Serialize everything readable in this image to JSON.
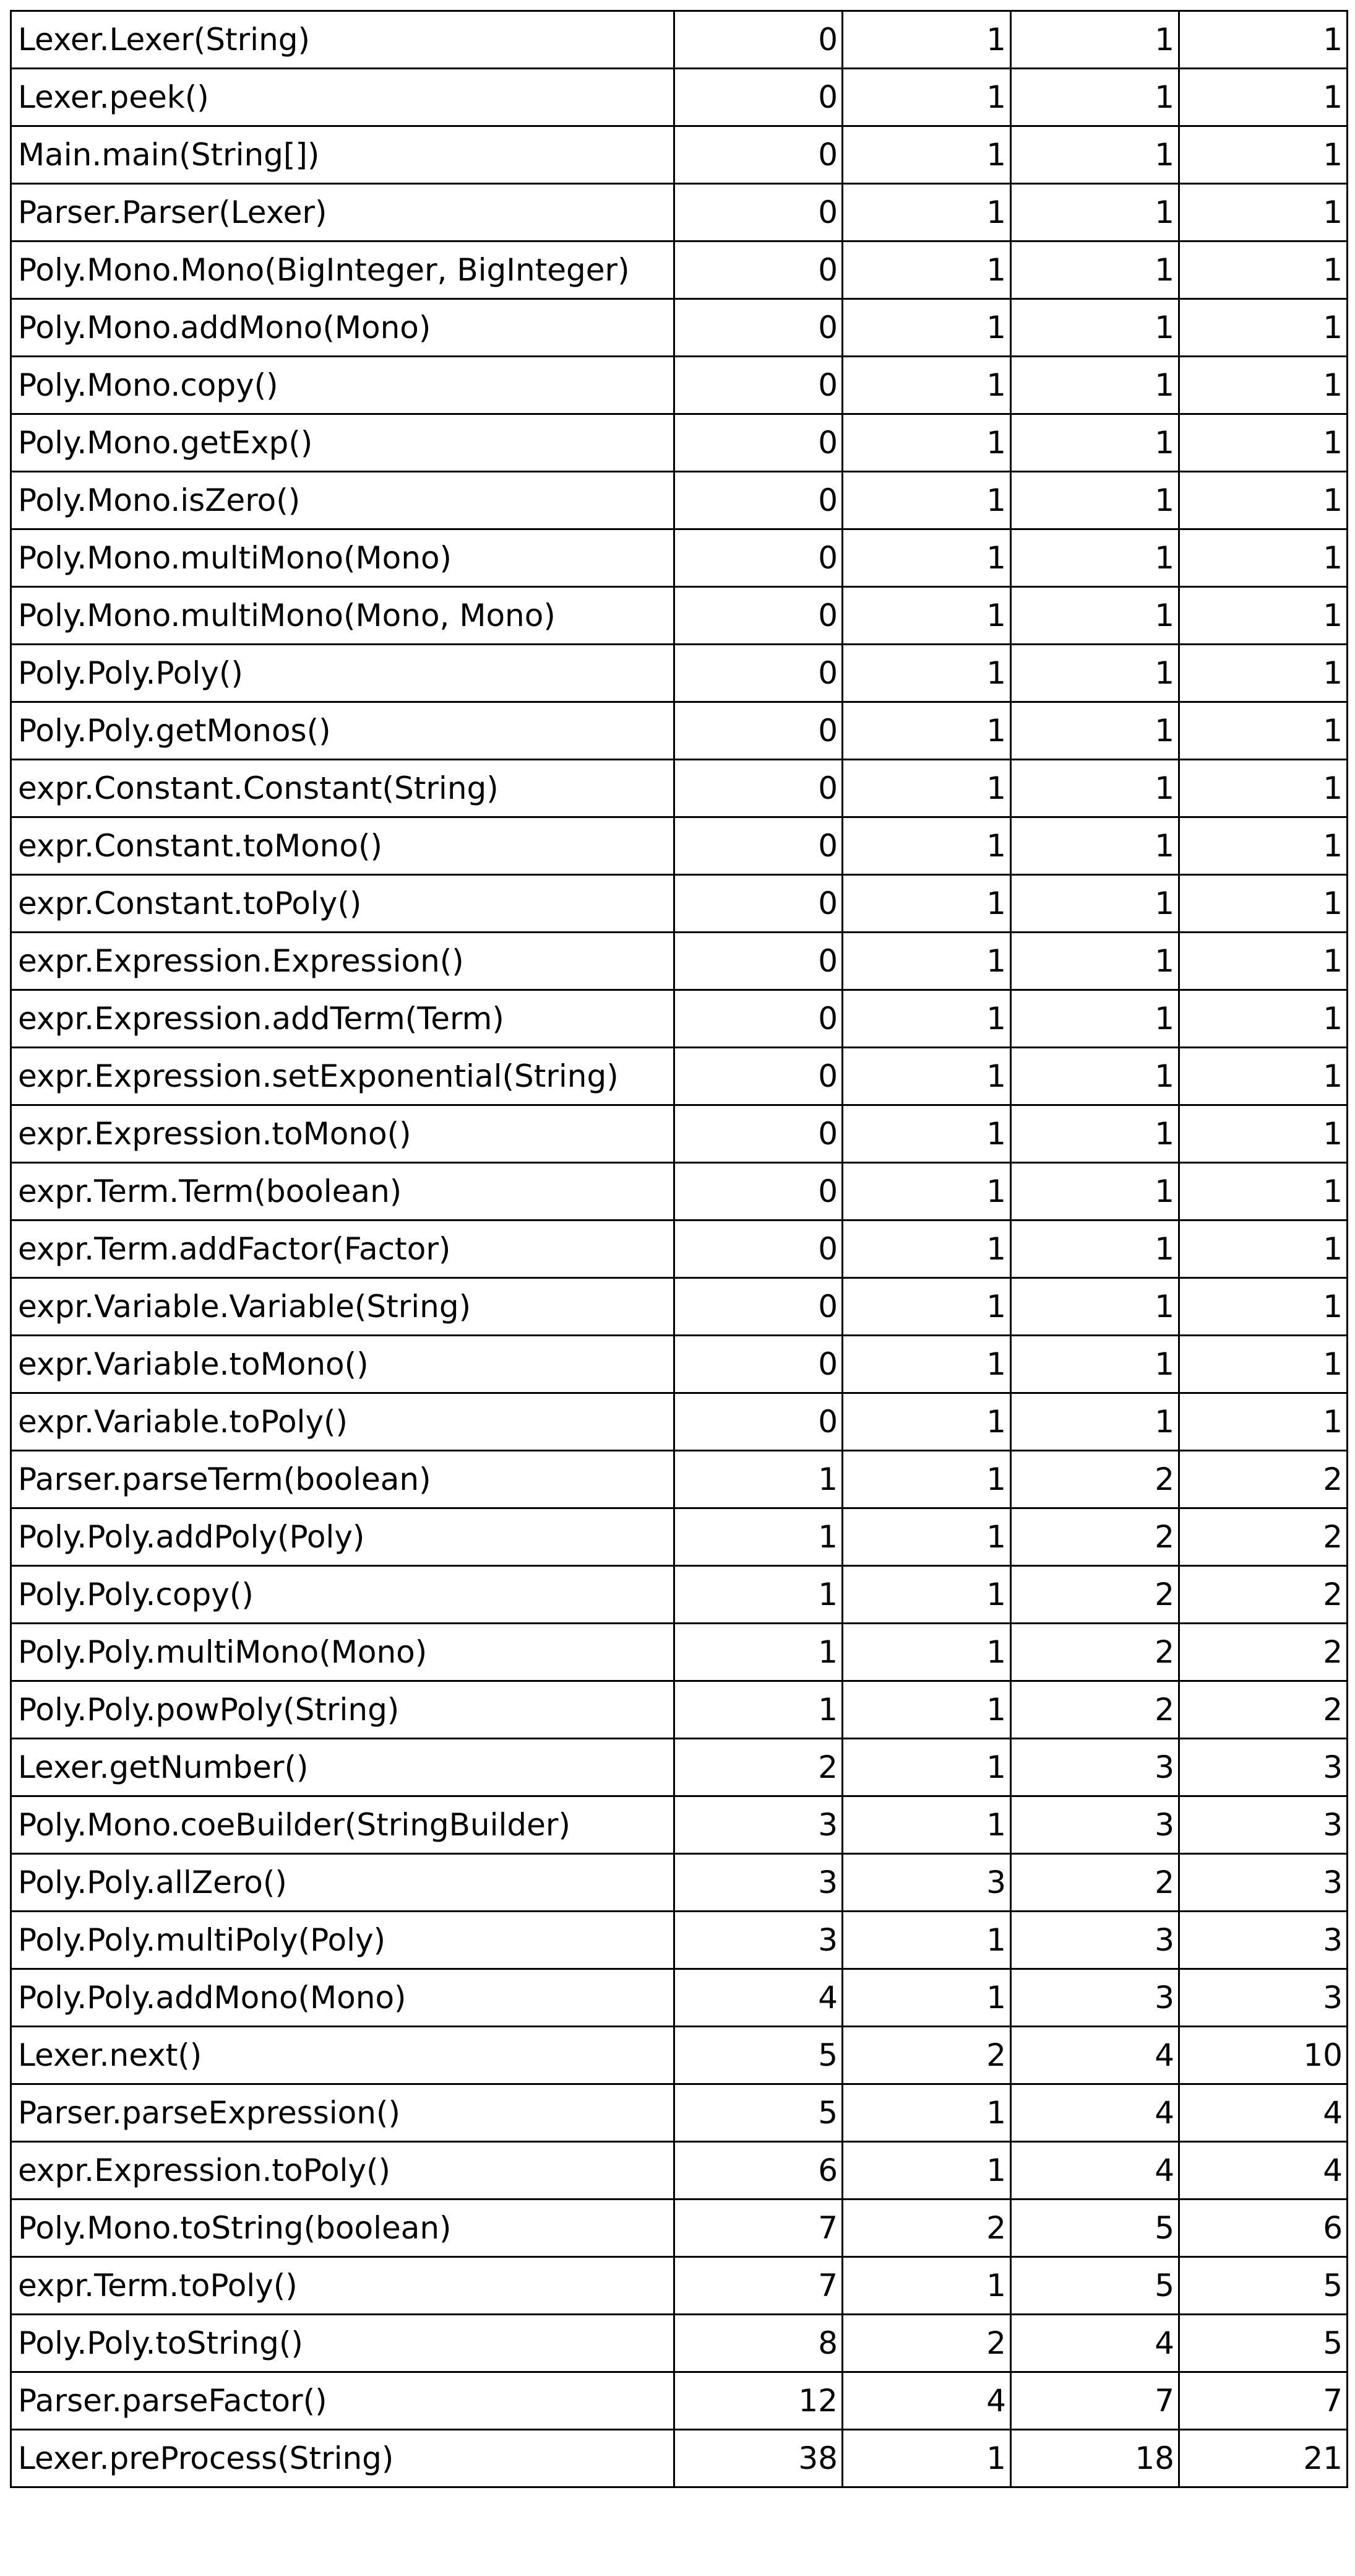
{
  "table": {
    "rows": [
      {
        "method": "Lexer.Lexer(String)",
        "v1": "0",
        "v2": "1",
        "v3": "1",
        "v4": "1"
      },
      {
        "method": "Lexer.peek()",
        "v1": "0",
        "v2": "1",
        "v3": "1",
        "v4": "1"
      },
      {
        "method": "Main.main(String[])",
        "v1": "0",
        "v2": "1",
        "v3": "1",
        "v4": "1"
      },
      {
        "method": "Parser.Parser(Lexer)",
        "v1": "0",
        "v2": "1",
        "v3": "1",
        "v4": "1"
      },
      {
        "method": "Poly.Mono.Mono(BigInteger, BigInteger)",
        "v1": "0",
        "v2": "1",
        "v3": "1",
        "v4": "1"
      },
      {
        "method": "Poly.Mono.addMono(Mono)",
        "v1": "0",
        "v2": "1",
        "v3": "1",
        "v4": "1"
      },
      {
        "method": "Poly.Mono.copy()",
        "v1": "0",
        "v2": "1",
        "v3": "1",
        "v4": "1"
      },
      {
        "method": "Poly.Mono.getExp()",
        "v1": "0",
        "v2": "1",
        "v3": "1",
        "v4": "1"
      },
      {
        "method": "Poly.Mono.isZero()",
        "v1": "0",
        "v2": "1",
        "v3": "1",
        "v4": "1"
      },
      {
        "method": "Poly.Mono.multiMono(Mono)",
        "v1": "0",
        "v2": "1",
        "v3": "1",
        "v4": "1"
      },
      {
        "method": "Poly.Mono.multiMono(Mono, Mono)",
        "v1": "0",
        "v2": "1",
        "v3": "1",
        "v4": "1"
      },
      {
        "method": "Poly.Poly.Poly()",
        "v1": "0",
        "v2": "1",
        "v3": "1",
        "v4": "1"
      },
      {
        "method": "Poly.Poly.getMonos()",
        "v1": "0",
        "v2": "1",
        "v3": "1",
        "v4": "1"
      },
      {
        "method": "expr.Constant.Constant(String)",
        "v1": "0",
        "v2": "1",
        "v3": "1",
        "v4": "1"
      },
      {
        "method": "expr.Constant.toMono()",
        "v1": "0",
        "v2": "1",
        "v3": "1",
        "v4": "1"
      },
      {
        "method": "expr.Constant.toPoly()",
        "v1": "0",
        "v2": "1",
        "v3": "1",
        "v4": "1"
      },
      {
        "method": "expr.Expression.Expression()",
        "v1": "0",
        "v2": "1",
        "v3": "1",
        "v4": "1"
      },
      {
        "method": "expr.Expression.addTerm(Term)",
        "v1": "0",
        "v2": "1",
        "v3": "1",
        "v4": "1"
      },
      {
        "method": "expr.Expression.setExponential(String)",
        "v1": "0",
        "v2": "1",
        "v3": "1",
        "v4": "1"
      },
      {
        "method": "expr.Expression.toMono()",
        "v1": "0",
        "v2": "1",
        "v3": "1",
        "v4": "1"
      },
      {
        "method": "expr.Term.Term(boolean)",
        "v1": "0",
        "v2": "1",
        "v3": "1",
        "v4": "1"
      },
      {
        "method": "expr.Term.addFactor(Factor)",
        "v1": "0",
        "v2": "1",
        "v3": "1",
        "v4": "1"
      },
      {
        "method": "expr.Variable.Variable(String)",
        "v1": "0",
        "v2": "1",
        "v3": "1",
        "v4": "1"
      },
      {
        "method": "expr.Variable.toMono()",
        "v1": "0",
        "v2": "1",
        "v3": "1",
        "v4": "1"
      },
      {
        "method": "expr.Variable.toPoly()",
        "v1": "0",
        "v2": "1",
        "v3": "1",
        "v4": "1"
      },
      {
        "method": "Parser.parseTerm(boolean)",
        "v1": "1",
        "v2": "1",
        "v3": "2",
        "v4": "2"
      },
      {
        "method": "Poly.Poly.addPoly(Poly)",
        "v1": "1",
        "v2": "1",
        "v3": "2",
        "v4": "2"
      },
      {
        "method": "Poly.Poly.copy()",
        "v1": "1",
        "v2": "1",
        "v3": "2",
        "v4": "2"
      },
      {
        "method": "Poly.Poly.multiMono(Mono)",
        "v1": "1",
        "v2": "1",
        "v3": "2",
        "v4": "2"
      },
      {
        "method": "Poly.Poly.powPoly(String)",
        "v1": "1",
        "v2": "1",
        "v3": "2",
        "v4": "2"
      },
      {
        "method": "Lexer.getNumber()",
        "v1": "2",
        "v2": "1",
        "v3": "3",
        "v4": "3"
      },
      {
        "method": "Poly.Mono.coeBuilder(StringBuilder)",
        "v1": "3",
        "v2": "1",
        "v3": "3",
        "v4": "3"
      },
      {
        "method": "Poly.Poly.allZero()",
        "v1": "3",
        "v2": "3",
        "v3": "2",
        "v4": "3"
      },
      {
        "method": "Poly.Poly.multiPoly(Poly)",
        "v1": "3",
        "v2": "1",
        "v3": "3",
        "v4": "3"
      },
      {
        "method": "Poly.Poly.addMono(Mono)",
        "v1": "4",
        "v2": "1",
        "v3": "3",
        "v4": "3"
      },
      {
        "method": "Lexer.next()",
        "v1": "5",
        "v2": "2",
        "v3": "4",
        "v4": "10"
      },
      {
        "method": "Parser.parseExpression()",
        "v1": "5",
        "v2": "1",
        "v3": "4",
        "v4": "4"
      },
      {
        "method": "expr.Expression.toPoly()",
        "v1": "6",
        "v2": "1",
        "v3": "4",
        "v4": "4"
      },
      {
        "method": "Poly.Mono.toString(boolean)",
        "v1": "7",
        "v2": "2",
        "v3": "5",
        "v4": "6"
      },
      {
        "method": "expr.Term.toPoly()",
        "v1": "7",
        "v2": "1",
        "v3": "5",
        "v4": "5"
      },
      {
        "method": "Poly.Poly.toString()",
        "v1": "8",
        "v2": "2",
        "v3": "4",
        "v4": "5"
      },
      {
        "method": "Parser.parseFactor()",
        "v1": "12",
        "v2": "4",
        "v3": "7",
        "v4": "7"
      },
      {
        "method": "Lexer.preProcess(String)",
        "v1": "38",
        "v2": "1",
        "v3": "18",
        "v4": "21"
      }
    ]
  }
}
